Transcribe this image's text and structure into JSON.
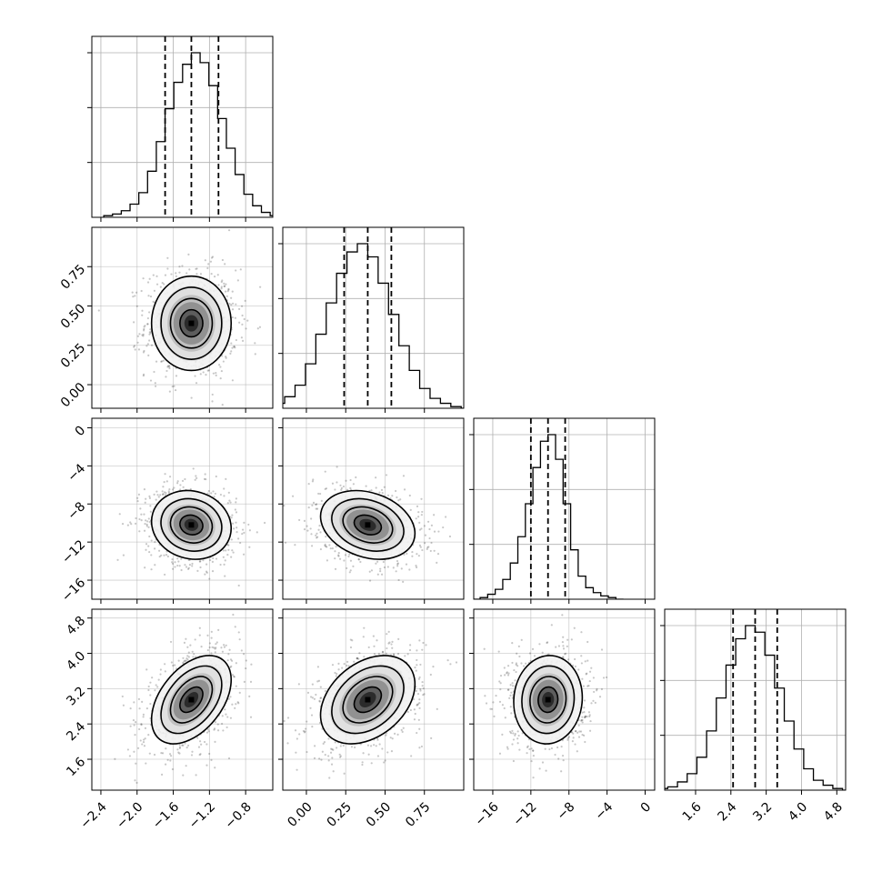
{
  "chart_data": {
    "type": "corner",
    "title": "",
    "n_params": 4,
    "grid": true,
    "colors": {
      "line": "#000000",
      "grid": "#b0b0b0",
      "scatter": "#000000",
      "background": "#ffffff"
    },
    "params": [
      {
        "name": "",
        "range": [
          -2.5,
          -0.5
        ],
        "ticks": [
          -2.4,
          -2.0,
          -1.6,
          -1.2,
          -0.8
        ],
        "tick_labels": [
          "−2.4",
          "−2.0",
          "−1.6",
          "−1.2",
          "−0.8"
        ],
        "quantiles": [
          -1.69,
          -1.4,
          -1.1
        ],
        "mean": -1.4,
        "sd": 0.22
      },
      {
        "name": "",
        "range": [
          -0.15,
          1.0
        ],
        "ticks": [
          0.0,
          0.25,
          0.5,
          0.75
        ],
        "tick_labels": [
          "0.00",
          "0.25",
          "0.50",
          "0.75"
        ],
        "quantiles": [
          0.24,
          0.39,
          0.54
        ],
        "mean": 0.39,
        "sd": 0.15
      },
      {
        "name": "",
        "range": [
          -18,
          1
        ],
        "ticks": [
          -16,
          -12,
          -8,
          -4,
          0
        ],
        "tick_labels": [
          "−16",
          "−12",
          "−8",
          "−4",
          "0"
        ],
        "quantiles": [
          -12.0,
          -10.2,
          -8.4
        ],
        "mean": -10.2,
        "sd": 1.8
      },
      {
        "name": "",
        "range": [
          0.9,
          5.0
        ],
        "ticks": [
          1.6,
          2.4,
          3.2,
          4.0,
          4.8
        ],
        "tick_labels": [
          "1.6",
          "2.4",
          "3.2",
          "4.0",
          "4.8"
        ],
        "quantiles": [
          2.45,
          2.95,
          3.45
        ],
        "mean": 2.95,
        "sd": 0.5
      }
    ],
    "correlations": [
      [
        1,
        0,
        -0.1,
        0.45
      ],
      [
        0,
        1,
        -0.25,
        0.35
      ],
      [
        -0.1,
        -0.25,
        1,
        0.05
      ],
      [
        0.45,
        0.35,
        0.05,
        1
      ]
    ],
    "histograms": [
      {
        "bins": 20,
        "values": [
          0.01,
          0.02,
          0.04,
          0.08,
          0.15,
          0.28,
          0.46,
          0.66,
          0.82,
          0.93,
          1.0,
          0.94,
          0.8,
          0.6,
          0.42,
          0.26,
          0.14,
          0.07,
          0.03,
          0.01
        ]
      },
      {
        "bins": 20,
        "values": [
          0.01,
          0.03,
          0.07,
          0.14,
          0.27,
          0.45,
          0.64,
          0.82,
          0.95,
          1.0,
          0.92,
          0.76,
          0.57,
          0.38,
          0.23,
          0.12,
          0.06,
          0.03,
          0.01,
          0.0
        ]
      },
      {
        "bins": 20,
        "values": [
          0.0,
          0.01,
          0.03,
          0.06,
          0.12,
          0.22,
          0.38,
          0.58,
          0.8,
          0.96,
          1.0,
          0.85,
          0.58,
          0.3,
          0.14,
          0.07,
          0.04,
          0.02,
          0.01,
          0.0
        ]
      },
      {
        "bins": 20,
        "values": [
          0.01,
          0.02,
          0.05,
          0.1,
          0.2,
          0.36,
          0.56,
          0.76,
          0.92,
          1.0,
          0.96,
          0.82,
          0.62,
          0.42,
          0.25,
          0.13,
          0.06,
          0.03,
          0.01,
          0.0
        ]
      }
    ],
    "contour_levels_sigma": [
      0.5,
      1.0,
      1.5,
      2.0
    ]
  }
}
